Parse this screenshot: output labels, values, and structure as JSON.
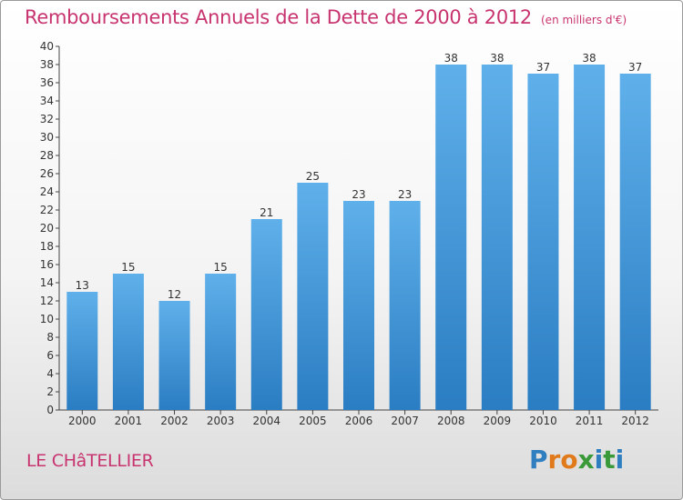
{
  "title": "Remboursements Annuels de la Dette de 2000 à 2012",
  "subtitle": "(en milliers d'€)",
  "commune": "LE CHâTELLIER",
  "logo_text": "Proxiti",
  "colors": {
    "accent": "#c8346f",
    "bar_top": "#5fb0ea",
    "bar_bottom": "#2a7dc2"
  },
  "chart_data": {
    "type": "bar",
    "title": "Remboursements Annuels de la Dette de 2000 à 2012",
    "xlabel": "",
    "ylabel": "",
    "categories": [
      "2000",
      "2001",
      "2002",
      "2003",
      "2004",
      "2005",
      "2006",
      "2007",
      "2008",
      "2009",
      "2010",
      "2011",
      "2012"
    ],
    "values": [
      13,
      15,
      12,
      15,
      21,
      25,
      23,
      23,
      38,
      38,
      37,
      38,
      37
    ],
    "ylim": [
      0,
      40
    ],
    "ytick_step": 2,
    "grid": false,
    "data_labels": true
  }
}
